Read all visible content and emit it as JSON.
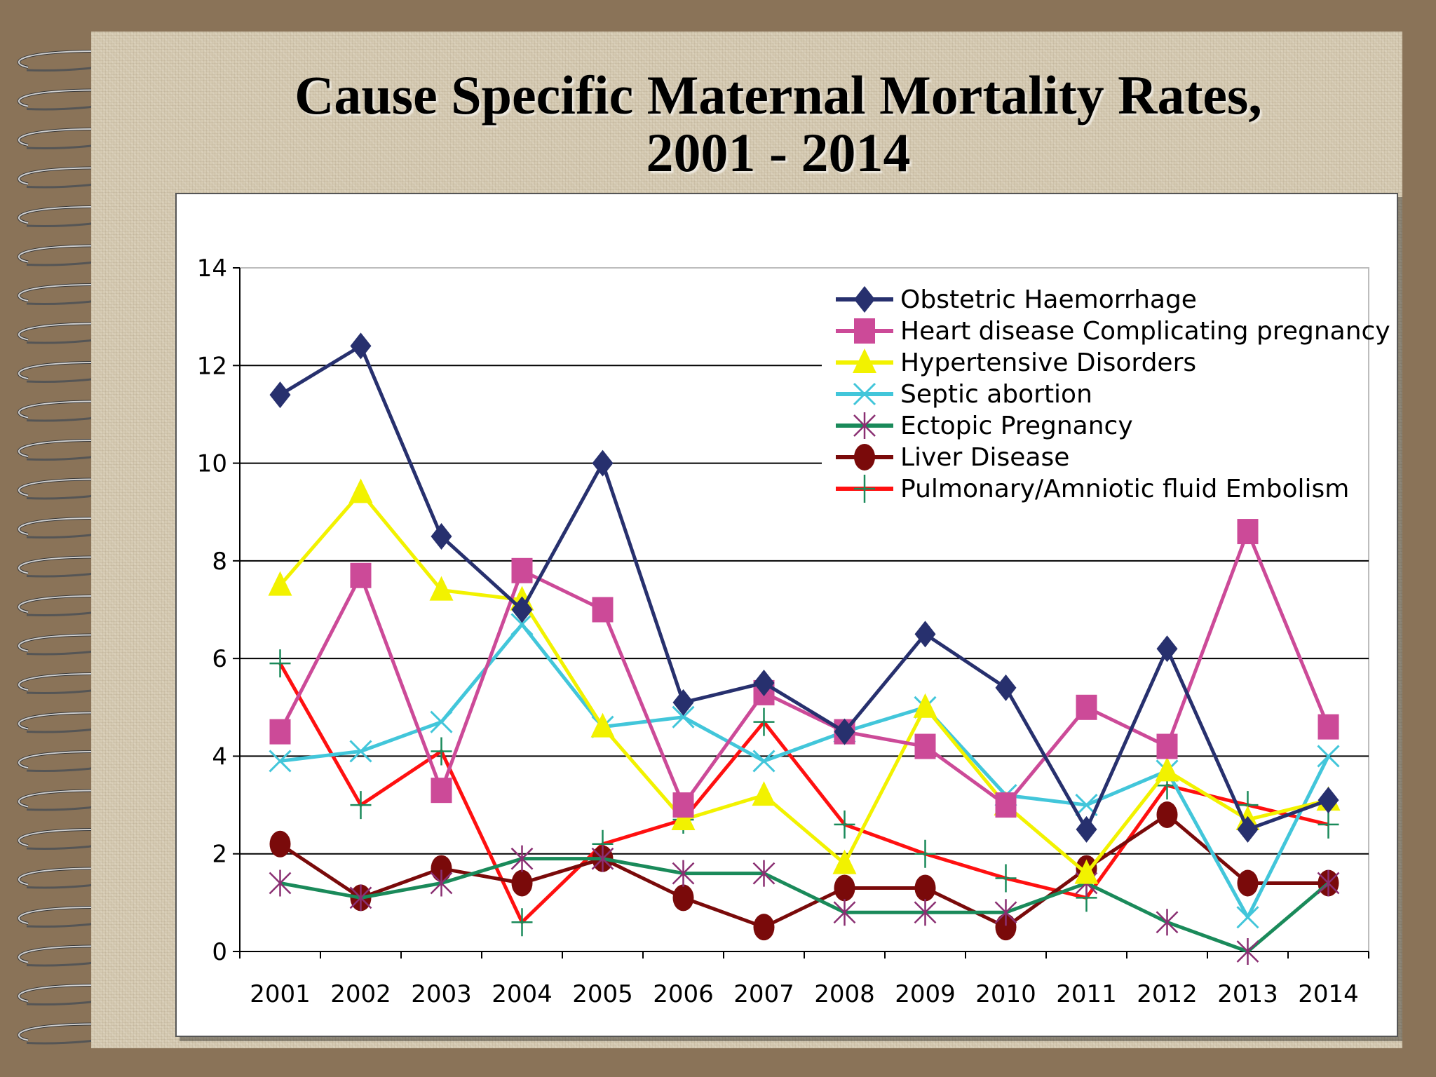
{
  "slide": {
    "title_line1": "Cause Specific Maternal Mortality Rates,",
    "title_line2": "2001 - 2014"
  },
  "chart_data": {
    "type": "line",
    "title": "Cause Specific Maternal Mortality Rates, 2001 - 2014",
    "xlabel": "",
    "ylabel": "",
    "categories": [
      "2001",
      "2002",
      "2003",
      "2004",
      "2005",
      "2006",
      "2007",
      "2008",
      "2009",
      "2010",
      "2011",
      "2012",
      "2013",
      "2014"
    ],
    "ylim": [
      0,
      14
    ],
    "yticks": [
      0,
      2,
      4,
      6,
      8,
      10,
      12,
      14
    ],
    "grid": true,
    "legend_position": "top-right",
    "series": [
      {
        "name": "Obstetric Haemorrhage",
        "color": "#27306e",
        "marker": "diamond",
        "values": [
          11.4,
          12.4,
          8.5,
          7.0,
          10.0,
          5.1,
          5.5,
          4.5,
          6.5,
          5.4,
          2.5,
          6.2,
          2.5,
          3.1
        ]
      },
      {
        "name": "Heart disease Complicating pregnancy",
        "color": "#cc4a98",
        "marker": "square",
        "values": [
          4.5,
          7.7,
          3.3,
          7.8,
          7.0,
          3.0,
          5.3,
          4.5,
          4.2,
          3.0,
          5.0,
          4.2,
          8.6,
          4.6
        ]
      },
      {
        "name": "Hypertensive Disorders",
        "color": "#f2f200",
        "marker": "triangle",
        "values": [
          7.5,
          9.4,
          7.4,
          7.2,
          4.6,
          2.7,
          3.2,
          1.8,
          5.0,
          3.0,
          1.6,
          3.7,
          2.7,
          3.1
        ]
      },
      {
        "name": "Septic abortion",
        "color": "#42c6da",
        "marker": "x",
        "values": [
          3.9,
          4.1,
          4.7,
          6.7,
          4.6,
          4.8,
          3.9,
          4.5,
          5.0,
          3.2,
          3.0,
          3.7,
          0.7,
          4.0
        ]
      },
      {
        "name": "Ectopic Pregnancy",
        "color": "#1a8a5a",
        "marker": "asterisk",
        "values": [
          1.4,
          1.1,
          1.4,
          1.9,
          1.9,
          1.6,
          1.6,
          0.8,
          0.8,
          0.8,
          1.4,
          0.6,
          0.0,
          1.4
        ]
      },
      {
        "name": "Liver Disease",
        "color": "#7a0a0a",
        "marker": "circle",
        "values": [
          2.2,
          1.1,
          1.7,
          1.4,
          1.9,
          1.1,
          0.5,
          1.3,
          1.3,
          0.5,
          1.7,
          2.8,
          1.4,
          1.4
        ]
      },
      {
        "name": "Pulmonary/Amniotic fluid Embolism",
        "color": "#ff1010",
        "marker": "plus",
        "values": [
          5.9,
          3.0,
          4.1,
          0.6,
          2.2,
          2.7,
          4.7,
          2.6,
          2.0,
          1.5,
          1.1,
          3.4,
          3.0,
          2.6
        ]
      }
    ]
  }
}
